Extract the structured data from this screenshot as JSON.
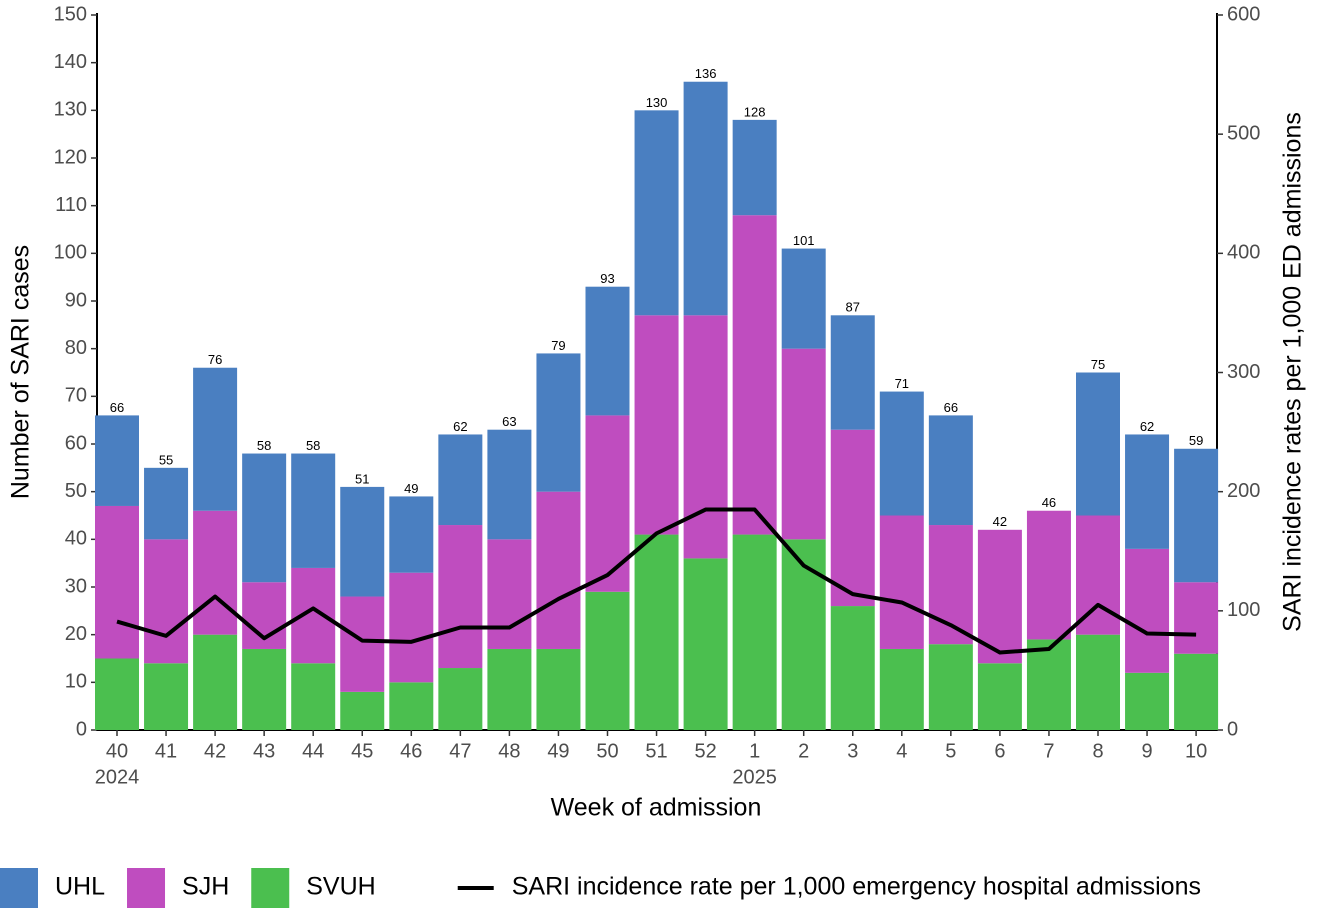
{
  "chart_data": {
    "type": "bar",
    "x_label": "Week of admission",
    "y_label": "Number of SARI cases",
    "y2_label": "SARI incidence rates per 1,000 ED admissions",
    "categories": [
      "40",
      "41",
      "42",
      "43",
      "44",
      "45",
      "46",
      "47",
      "48",
      "49",
      "50",
      "51",
      "52",
      "1",
      "2",
      "3",
      "4",
      "5",
      "6",
      "7",
      "8",
      "9",
      "10"
    ],
    "year_labels": [
      "2024",
      null,
      null,
      null,
      null,
      null,
      null,
      null,
      null,
      null,
      null,
      null,
      null,
      "2025",
      null,
      null,
      null,
      null,
      null,
      null,
      null,
      null,
      null
    ],
    "series": [
      {
        "name": "UHL",
        "type": "bar",
        "color": "#4a7fc1",
        "values": [
          19,
          15,
          30,
          27,
          24,
          23,
          16,
          19,
          23,
          29,
          27,
          43,
          49,
          20,
          21,
          24,
          26,
          23,
          0,
          0,
          30,
          24,
          28
        ]
      },
      {
        "name": "SJH",
        "type": "bar",
        "color": "#bf4dbf",
        "values": [
          32,
          26,
          26,
          14,
          20,
          20,
          23,
          30,
          23,
          33,
          37,
          46,
          51,
          67,
          40,
          37,
          28,
          25,
          28,
          27,
          25,
          26,
          15
        ]
      },
      {
        "name": "SVUH",
        "type": "bar",
        "color": "#4bbf4f",
        "values": [
          15,
          14,
          20,
          17,
          14,
          8,
          10,
          13,
          17,
          17,
          29,
          41,
          36,
          41,
          40,
          26,
          17,
          18,
          14,
          19,
          20,
          12,
          16
        ]
      },
      {
        "name": "SARI incidence rate per 1,000 emergency hospital admissions",
        "type": "line",
        "axis": "y2",
        "color": "#000000",
        "values": [
          91,
          79,
          112,
          77,
          102,
          75,
          74,
          86,
          86,
          110,
          130,
          165,
          185,
          185,
          138,
          114,
          107,
          88,
          65,
          68,
          105,
          81,
          80
        ]
      }
    ],
    "totals": [
      66,
      55,
      76,
      58,
      58,
      51,
      49,
      62,
      63,
      79,
      93,
      130,
      136,
      128,
      101,
      87,
      71,
      66,
      42,
      46,
      75,
      62,
      59
    ],
    "ylim": [
      0,
      150
    ],
    "yticks": [
      0,
      10,
      20,
      30,
      40,
      50,
      60,
      70,
      80,
      90,
      100,
      110,
      120,
      130,
      140,
      150
    ],
    "y2lim": [
      0,
      600
    ],
    "y2ticks": [
      0,
      100,
      200,
      300,
      400,
      500,
      600
    ],
    "grid": false,
    "legend": "bottom"
  }
}
